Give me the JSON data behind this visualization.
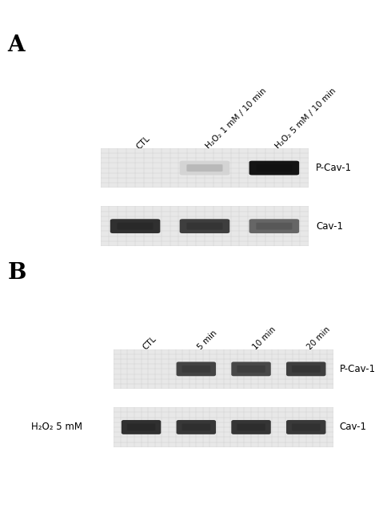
{
  "panel_A_label": "A",
  "panel_B_label": "B",
  "panel_A_col_labels": [
    "CTL",
    "H₂O₂ 1 mM / 10 min",
    "H₂O₂ 5 mM / 10 min"
  ],
  "panel_B_col_labels": [
    "CTL",
    "5 min",
    "10 min",
    "20 min"
  ],
  "panel_B_left_label": "H₂O₂ 5 mM",
  "row_labels_A": [
    "P-Cav-1",
    "Cav-1"
  ],
  "row_labels_B": [
    "P-Cav-1",
    "Cav-1"
  ],
  "bg_color": "#ffffff",
  "gel_bg": "#e8e8e8",
  "A_pcav1_intensities": [
    0.0,
    0.18,
    1.0
  ],
  "A_cav1_intensities": [
    0.88,
    0.82,
    0.65
  ],
  "B_pcav1_intensities": [
    0.0,
    0.8,
    0.78,
    0.82
  ],
  "B_cav1_intensities": [
    0.88,
    0.85,
    0.86,
    0.84
  ],
  "fig_width": 4.74,
  "fig_height": 6.6,
  "dpi": 100
}
